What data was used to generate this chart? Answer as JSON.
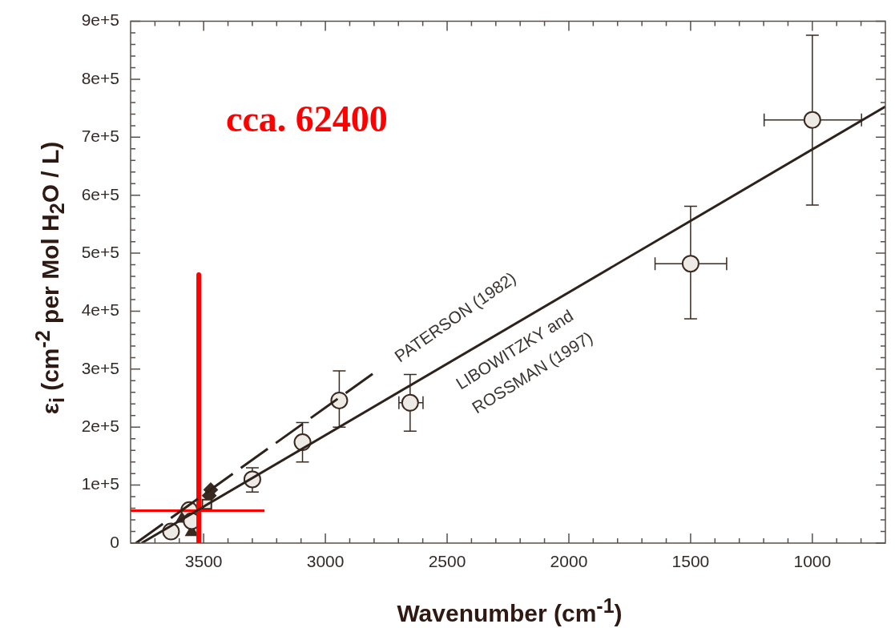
{
  "chart_data": {
    "type": "scatter",
    "xlabel": "Wavenumber (cm$^{-1}$)",
    "ylabel": "ε$_{i}$ (cm$^{-2}$ per Mol H$_{2}$O / L)",
    "xlim": [
      3800,
      700
    ],
    "ylim": [
      0,
      900000
    ],
    "xticks": [
      {
        "value": 3700,
        "label": null
      },
      {
        "value": 3600,
        "label": null
      },
      3500,
      {
        "value": 3400,
        "label": null
      },
      {
        "value": 3300,
        "label": null
      },
      {
        "value": 3200,
        "label": null
      },
      {
        "value": 3100,
        "label": null
      },
      3000,
      {
        "value": 2900,
        "label": null
      },
      {
        "value": 2800,
        "label": null
      },
      {
        "value": 2700,
        "label": null
      },
      {
        "value": 2600,
        "label": null
      },
      2500,
      {
        "value": 2400,
        "label": null
      },
      {
        "value": 2300,
        "label": null
      },
      {
        "value": 2200,
        "label": null
      },
      {
        "value": 2100,
        "label": null
      },
      2000,
      {
        "value": 1900,
        "label": null
      },
      {
        "value": 1800,
        "label": null
      },
      {
        "value": 1700,
        "label": null
      },
      {
        "value": 1600,
        "label": null
      },
      1500,
      {
        "value": 1400,
        "label": null
      },
      {
        "value": 1300,
        "label": null
      },
      {
        "value": 1200,
        "label": null
      },
      {
        "value": 1100,
        "label": null
      },
      1000,
      {
        "value": 900,
        "label": null
      },
      {
        "value": 800,
        "label": null
      }
    ],
    "yticks": [
      0,
      {
        "value": 20000,
        "label": null
      },
      {
        "value": 40000,
        "label": null
      },
      {
        "value": 60000,
        "label": null
      },
      {
        "value": 80000,
        "label": null
      },
      {
        "value": 100000,
        "label": "1e+5"
      },
      {
        "value": 120000,
        "label": null
      },
      {
        "value": 140000,
        "label": null
      },
      {
        "value": 160000,
        "label": null
      },
      {
        "value": 180000,
        "label": null
      },
      {
        "value": 200000,
        "label": "2e+5"
      },
      {
        "value": 220000,
        "label": null
      },
      {
        "value": 240000,
        "label": null
      },
      {
        "value": 260000,
        "label": null
      },
      {
        "value": 280000,
        "label": null
      },
      {
        "value": 300000,
        "label": "3e+5"
      },
      {
        "value": 320000,
        "label": null
      },
      {
        "value": 340000,
        "label": null
      },
      {
        "value": 360000,
        "label": null
      },
      {
        "value": 380000,
        "label": null
      },
      {
        "value": 400000,
        "label": "4e+5"
      },
      {
        "value": 420000,
        "label": null
      },
      {
        "value": 440000,
        "label": null
      },
      {
        "value": 460000,
        "label": null
      },
      {
        "value": 480000,
        "label": null
      },
      {
        "value": 500000,
        "label": "5e+5"
      },
      {
        "value": 520000,
        "label": null
      },
      {
        "value": 540000,
        "label": null
      },
      {
        "value": 560000,
        "label": null
      },
      {
        "value": 580000,
        "label": null
      },
      {
        "value": 600000,
        "label": "6e+5"
      },
      {
        "value": 620000,
        "label": null
      },
      {
        "value": 640000,
        "label": null
      },
      {
        "value": 660000,
        "label": null
      },
      {
        "value": 680000,
        "label": null
      },
      {
        "value": 700000,
        "label": "7e+5"
      },
      {
        "value": 720000,
        "label": null
      },
      {
        "value": 740000,
        "label": null
      },
      {
        "value": 760000,
        "label": null
      },
      {
        "value": 780000,
        "label": null
      },
      {
        "value": 800000,
        "label": "8e+5"
      },
      {
        "value": 820000,
        "label": null
      },
      {
        "value": 840000,
        "label": null
      },
      {
        "value": 860000,
        "label": null
      },
      {
        "value": 880000,
        "label": null
      },
      {
        "value": 900000,
        "label": "9e+5"
      }
    ],
    "series": [
      {
        "type": "line",
        "color": "#2e231c",
        "line_style": "solid",
        "marker": "none",
        "x": [
          3755,
          700
        ],
        "values": [
          0,
          753000
        ]
      },
      {
        "type": "line",
        "color": "#2e231c",
        "line_style": "dashed",
        "marker": "none",
        "x": [
          3778,
          2806
        ],
        "values": [
          0,
          292000
        ]
      },
      {
        "type": "line",
        "color": "#ff0000",
        "line_style": "solid",
        "marker": "none",
        "x": [
          3520,
          3520
        ],
        "values": [
          463000,
          0
        ]
      },
      {
        "type": "line",
        "color": "#ff0000",
        "line_style": "solid",
        "marker": "none",
        "x": [
          3800,
          3250
        ],
        "values": [
          56000,
          56000
        ]
      },
      {
        "type": "scatter",
        "color": "#3a2a20",
        "marker": "circle",
        "x": [
          3634,
          3559,
          3549,
          3300,
          3094,
          2943,
          2652,
          1500,
          1000
        ],
        "values": [
          20000,
          57000,
          38000,
          110000,
          174000,
          246000,
          242000,
          482000,
          730000
        ],
        "errors": [
          null,
          null,
          null,
          [
            88000,
            130000
          ],
          [
            140000,
            208000
          ],
          [
            200000,
            297000
          ],
          [
            193000,
            291000
          ],
          [
            387000,
            581000
          ],
          [
            583000,
            876000
          ]
        ],
        "xerrors": [
          null,
          null,
          null,
          null,
          null,
          null,
          [
            2599,
            2698
          ],
          [
            1352,
            1646
          ],
          [
            798,
            1198
          ]
        ]
      },
      {
        "type": "scatter",
        "color": "#3a2a20",
        "marker": "triangle",
        "x": [
          3588,
          3549
        ],
        "values": [
          42000,
          19000
        ]
      },
      {
        "type": "scatter",
        "color": "#3a2a20",
        "marker": "square",
        "x": [
          3487
        ],
        "values": [
          67000
        ]
      },
      {
        "type": "scatter",
        "color": "#3a2a20",
        "marker": "diamond",
        "x": [
          3471,
          3477
        ],
        "values": [
          92000,
          82000
        ]
      }
    ],
    "annotations": [
      "cca. 62400",
      "PATERSON (1982)",
      "LIBOWITZKY and",
      "ROSSMAN (1997)"
    ],
    "legend": false,
    "grid": false
  }
}
